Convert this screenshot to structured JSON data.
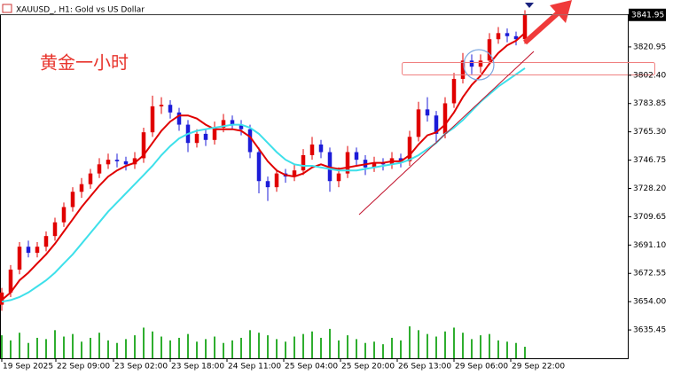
{
  "chart_data": {
    "type": "candlestick",
    "title": "XAUUSD_, H1:  Gold vs US Dollar",
    "annotation": "黄金一小时",
    "current_price": 3841.95,
    "up_color": "#e00000",
    "down_color": "#1c1cd8",
    "volume_color": "#2fae2f",
    "ohlc": [
      [
        3652,
        3663,
        3648,
        3660
      ],
      [
        3660,
        3678,
        3657,
        3675
      ],
      [
        3675,
        3693,
        3672,
        3690
      ],
      [
        3690,
        3694,
        3683,
        3686
      ],
      [
        3686,
        3693,
        3683,
        3690
      ],
      [
        3690,
        3700,
        3687,
        3697
      ],
      [
        3697,
        3709,
        3694,
        3706
      ],
      [
        3706,
        3719,
        3703,
        3716
      ],
      [
        3716,
        3729,
        3713,
        3726
      ],
      [
        3726,
        3735,
        3722,
        3731
      ],
      [
        3731,
        3741,
        3728,
        3738
      ],
      [
        3738,
        3748,
        3735,
        3744
      ],
      [
        3744,
        3751,
        3741,
        3747
      ],
      [
        3747,
        3751,
        3742,
        3746
      ],
      [
        3746,
        3749,
        3740,
        3744
      ],
      [
        3744,
        3752,
        3741,
        3748
      ],
      [
        3748,
        3768,
        3745,
        3765
      ],
      [
        3765,
        3789,
        3762,
        3782
      ],
      [
        3782,
        3788,
        3777,
        3783
      ],
      [
        3783,
        3786,
        3774,
        3778
      ],
      [
        3778,
        3781,
        3766,
        3770
      ],
      [
        3770,
        3773,
        3752,
        3758
      ],
      [
        3758,
        3767,
        3755,
        3764
      ],
      [
        3764,
        3767,
        3756,
        3760
      ],
      [
        3760,
        3772,
        3757,
        3768
      ],
      [
        3768,
        3777,
        3765,
        3773
      ],
      [
        3773,
        3776,
        3767,
        3770
      ],
      [
        3770,
        3773,
        3763,
        3767
      ],
      [
        3767,
        3770,
        3748,
        3752
      ],
      [
        3752,
        3755,
        3725,
        3733
      ],
      [
        3733,
        3736,
        3720,
        3729
      ],
      [
        3729,
        3741,
        3726,
        3738
      ],
      [
        3738,
        3741,
        3732,
        3736
      ],
      [
        3736,
        3744,
        3733,
        3740
      ],
      [
        3740,
        3754,
        3737,
        3750
      ],
      [
        3750,
        3762,
        3747,
        3757
      ],
      [
        3757,
        3760,
        3748,
        3752
      ],
      [
        3752,
        3755,
        3726,
        3733
      ],
      [
        3733,
        3742,
        3729,
        3738
      ],
      [
        3738,
        3756,
        3735,
        3752
      ],
      [
        3752,
        3755,
        3743,
        3747
      ],
      [
        3747,
        3750,
        3737,
        3742
      ],
      [
        3742,
        3749,
        3739,
        3745
      ],
      [
        3745,
        3748,
        3740,
        3744
      ],
      [
        3744,
        3752,
        3741,
        3748
      ],
      [
        3748,
        3751,
        3742,
        3746
      ],
      [
        3746,
        3766,
        3743,
        3762
      ],
      [
        3762,
        3785,
        3759,
        3780
      ],
      [
        3780,
        3788,
        3772,
        3776
      ],
      [
        3776,
        3779,
        3758,
        3764
      ],
      [
        3764,
        3788,
        3761,
        3784
      ],
      [
        3784,
        3804,
        3781,
        3800
      ],
      [
        3800,
        3817,
        3797,
        3812
      ],
      [
        3812,
        3816,
        3803,
        3808
      ],
      [
        3808,
        3816,
        3804,
        3812
      ],
      [
        3812,
        3830,
        3809,
        3826
      ],
      [
        3826,
        3834,
        3823,
        3830
      ],
      [
        3830,
        3833,
        3824,
        3828
      ],
      [
        3828,
        3831,
        3822,
        3826
      ],
      [
        3826,
        3845,
        3823,
        3842
      ]
    ],
    "lines": [
      {
        "color": "#e00000",
        "values": [
          3655,
          3660,
          3668,
          3673,
          3679,
          3685,
          3692,
          3700,
          3708,
          3716,
          3723,
          3730,
          3736,
          3740,
          3743,
          3745,
          3750,
          3758,
          3766,
          3772,
          3776,
          3776,
          3774,
          3770,
          3767,
          3767,
          3767,
          3766,
          3762,
          3754,
          3746,
          3740,
          3737,
          3736,
          3738,
          3742,
          3744,
          3742,
          3741,
          3742,
          3743,
          3744,
          3745,
          3745,
          3746,
          3746,
          3750,
          3757,
          3763,
          3765,
          3770,
          3778,
          3788,
          3796,
          3802,
          3810,
          3817,
          3822,
          3825,
          3830
        ]
      },
      {
        "color": "#3ee0ea",
        "values": [
          3654,
          3655,
          3657,
          3660,
          3664,
          3668,
          3673,
          3679,
          3685,
          3692,
          3699,
          3706,
          3713,
          3719,
          3725,
          3731,
          3737,
          3743,
          3750,
          3756,
          3761,
          3764,
          3766,
          3767,
          3768,
          3769,
          3770,
          3770,
          3768,
          3764,
          3758,
          3752,
          3747,
          3744,
          3743,
          3743,
          3742,
          3741,
          3740,
          3740,
          3740,
          3741,
          3742,
          3743,
          3744,
          3745,
          3747,
          3750,
          3754,
          3758,
          3764,
          3768,
          3773,
          3779,
          3785,
          3790,
          3795,
          3799,
          3803,
          3807
        ]
      }
    ],
    "volumes": [
      18,
      14,
      20,
      12,
      16,
      15,
      22,
      17,
      19,
      13,
      16,
      20,
      14,
      12,
      15,
      18,
      24,
      21,
      17,
      14,
      16,
      19,
      13,
      15,
      17,
      12,
      14,
      16,
      22,
      20,
      18,
      15,
      13,
      17,
      19,
      21,
      16,
      23,
      14,
      18,
      15,
      12,
      13,
      11,
      16,
      14,
      25,
      22,
      19,
      17,
      21,
      24,
      20,
      15,
      18,
      19,
      14,
      13,
      12,
      9
    ],
    "xlim": [
      -0.2,
      70.6
    ],
    "xticks": [
      {
        "value": 0,
        "label": "19 Sep 2025"
      },
      {
        "value": 6.1,
        "label": "22 Sep 09:00"
      },
      {
        "value": 12.6,
        "label": "23 Sep 02:00"
      },
      {
        "value": 19,
        "label": "23 Sep 18:00"
      },
      {
        "value": 25.4,
        "label": "24 Sep 11:00"
      },
      {
        "value": 31.8,
        "label": "25 Sep 04:00"
      },
      {
        "value": 38.2,
        "label": "25 Sep 20:00"
      },
      {
        "value": 44.6,
        "label": "26 Sep 13:00"
      },
      {
        "value": 51,
        "label": "29 Sep 06:00"
      },
      {
        "value": 57.4,
        "label": "29 Sep 22:00"
      }
    ],
    "ylim": [
      3616.9,
      3842.4
    ],
    "yticks": [
      3635.45,
      {
        "value": 3654,
        "label": "3654.00"
      },
      3672.55,
      {
        "value": 3691.1,
        "label": "3691.10"
      },
      3709.65,
      {
        "value": 3728.2,
        "label": "3728.20"
      },
      3746.75,
      {
        "value": 3765.3,
        "label": "3765.30"
      },
      3783.85,
      {
        "value": 3802.4,
        "label": "3802.40"
      },
      3820.95
    ]
  }
}
